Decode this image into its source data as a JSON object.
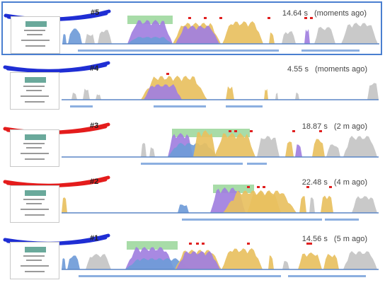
{
  "colors": {
    "scribble_blue": "#1f2ed4",
    "scribble_red": "#e41c1c",
    "selected_border": "#4a7fd0",
    "scripting": "#e8c060",
    "rendering": "#a17fe0",
    "painting": "#9fd89f",
    "network": "#6f9bd8",
    "idle": "#c4c4c4",
    "marker": "#e02020"
  },
  "recordings": [
    {
      "label": "#5",
      "duration": "14.64 s",
      "when": "(moments ago)",
      "selected": true,
      "scribble": "blue"
    },
    {
      "label": "#4",
      "duration": "4.55 s",
      "when": "(moments ago)",
      "selected": false,
      "scribble": "blue"
    },
    {
      "label": "#3",
      "duration": "18.87 s",
      "when": "(2 m ago)",
      "selected": false,
      "scribble": "red"
    },
    {
      "label": "#2",
      "duration": "22.48 s",
      "when": "(4 m ago)",
      "selected": false,
      "scribble": "red"
    },
    {
      "label": "#1",
      "duration": "14.56 s",
      "when": "(5 m ago)",
      "selected": false,
      "scribble": "blue"
    }
  ]
}
